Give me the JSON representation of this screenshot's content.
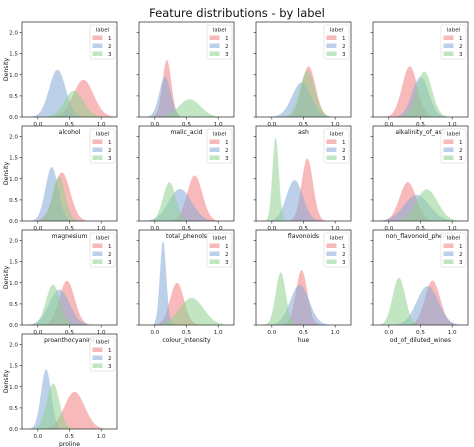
{
  "figure_title": "Feature distributions - by label",
  "colors": {
    "1": "#f08080",
    "2": "#87a9d8",
    "3": "#8fd18f"
  },
  "chart_data": {
    "type": "area",
    "title": "Feature distributions - by label",
    "ylabel": "Density",
    "ylim": [
      0,
      2.25
    ],
    "yticks": [
      "0.0",
      "0.5",
      "1.0",
      "1.5",
      "2.0"
    ],
    "grid": false,
    "legend": {
      "title": "label",
      "entries": [
        "1",
        "2",
        "3"
      ],
      "placement": "top-right"
    },
    "panels": [
      {
        "xlabel": "alcohol",
        "xlim": [
          -0.25,
          1.25
        ],
        "xticks": [
          "0.0",
          "0.5",
          "1.0"
        ],
        "series": [
          {
            "name": "1",
            "mu": 0.72,
            "sd": 0.16,
            "peak": 0.88
          },
          {
            "name": "2",
            "mu": 0.31,
            "sd": 0.13,
            "peak": 1.12
          },
          {
            "name": "3",
            "mu": 0.57,
            "sd": 0.15,
            "peak": 0.62
          }
        ]
      },
      {
        "xlabel": "malic_acid",
        "xlim": [
          -0.25,
          1.25
        ],
        "xticks": [
          "0.0",
          "0.5",
          "1.0"
        ],
        "series": [
          {
            "name": "1",
            "mu": 0.19,
            "sd": 0.07,
            "peak": 1.35
          },
          {
            "name": "2",
            "mu": 0.16,
            "sd": 0.09,
            "peak": 0.95
          },
          {
            "name": "3",
            "mu": 0.55,
            "sd": 0.17,
            "peak": 0.42
          }
        ]
      },
      {
        "xlabel": "ash",
        "xlim": [
          -0.25,
          1.25
        ],
        "xticks": [
          "0.0",
          "0.5",
          "1.0"
        ],
        "series": [
          {
            "name": "1",
            "mu": 0.58,
            "sd": 0.11,
            "peak": 1.2
          },
          {
            "name": "2",
            "mu": 0.47,
            "sd": 0.15,
            "peak": 0.82
          },
          {
            "name": "3",
            "mu": 0.56,
            "sd": 0.12,
            "peak": 1.1
          }
        ]
      },
      {
        "xlabel": "alkalinity_of_ash",
        "xlim": [
          -0.25,
          1.25
        ],
        "xticks": [
          "0.0",
          "0.5",
          "1.0"
        ],
        "series": [
          {
            "name": "1",
            "mu": 0.33,
            "sd": 0.12,
            "peak": 1.2
          },
          {
            "name": "2",
            "mu": 0.5,
            "sd": 0.13,
            "peak": 0.95
          },
          {
            "name": "3",
            "mu": 0.56,
            "sd": 0.12,
            "peak": 1.08
          }
        ]
      },
      {
        "xlabel": "magnesium",
        "xlim": [
          -0.25,
          1.25
        ],
        "xticks": [
          "0.0",
          "0.5",
          "1.0"
        ],
        "series": [
          {
            "name": "1",
            "mu": 0.38,
            "sd": 0.13,
            "peak": 1.15
          },
          {
            "name": "2",
            "mu": 0.22,
            "sd": 0.1,
            "peak": 1.28
          },
          {
            "name": "3",
            "mu": 0.33,
            "sd": 0.1,
            "peak": 1.05
          }
        ]
      },
      {
        "xlabel": "total_phenols",
        "xlim": [
          -0.25,
          1.25
        ],
        "xticks": [
          "0.0",
          "0.5",
          "1.0"
        ],
        "series": [
          {
            "name": "1",
            "mu": 0.63,
            "sd": 0.12,
            "peak": 1.08
          },
          {
            "name": "2",
            "mu": 0.4,
            "sd": 0.18,
            "peak": 0.76
          },
          {
            "name": "3",
            "mu": 0.23,
            "sd": 0.1,
            "peak": 0.92
          }
        ]
      },
      {
        "xlabel": "flavonoids",
        "xlim": [
          -0.25,
          1.25
        ],
        "xticks": [
          "0.0",
          "0.5",
          "1.0"
        ],
        "series": [
          {
            "name": "1",
            "mu": 0.56,
            "sd": 0.09,
            "peak": 1.48
          },
          {
            "name": "2",
            "mu": 0.36,
            "sd": 0.13,
            "peak": 0.97
          },
          {
            "name": "3",
            "mu": 0.06,
            "sd": 0.05,
            "peak": 1.98
          }
        ]
      },
      {
        "xlabel": "non_flavonoid_phenols",
        "xlim": [
          -0.25,
          1.25
        ],
        "xticks": [
          "0.0",
          "0.5",
          "1.0"
        ],
        "series": [
          {
            "name": "1",
            "mu": 0.3,
            "sd": 0.13,
            "peak": 0.92
          },
          {
            "name": "2",
            "mu": 0.44,
            "sd": 0.2,
            "peak": 0.62
          },
          {
            "name": "3",
            "mu": 0.6,
            "sd": 0.17,
            "peak": 0.75
          }
        ]
      },
      {
        "xlabel": "proanthocyanins",
        "xlim": [
          -0.25,
          1.25
        ],
        "xticks": [
          "0.0",
          "0.5",
          "1.0"
        ],
        "series": [
          {
            "name": "1",
            "mu": 0.46,
            "sd": 0.12,
            "peak": 1.05
          },
          {
            "name": "2",
            "mu": 0.34,
            "sd": 0.16,
            "peak": 0.84
          },
          {
            "name": "3",
            "mu": 0.24,
            "sd": 0.11,
            "peak": 0.96
          }
        ]
      },
      {
        "xlabel": "colour_intensity",
        "xlim": [
          -0.25,
          1.25
        ],
        "xticks": [
          "0.0",
          "0.5",
          "1.0"
        ],
        "series": [
          {
            "name": "1",
            "mu": 0.35,
            "sd": 0.11,
            "peak": 1.0
          },
          {
            "name": "2",
            "mu": 0.13,
            "sd": 0.05,
            "peak": 2.0
          },
          {
            "name": "3",
            "mu": 0.58,
            "sd": 0.19,
            "peak": 0.64
          }
        ]
      },
      {
        "xlabel": "hue",
        "xlim": [
          -0.25,
          1.25
        ],
        "xticks": [
          "0.0",
          "0.5",
          "1.0"
        ],
        "series": [
          {
            "name": "1",
            "mu": 0.47,
            "sd": 0.09,
            "peak": 1.3
          },
          {
            "name": "2",
            "mu": 0.44,
            "sd": 0.15,
            "peak": 0.95
          },
          {
            "name": "3",
            "mu": 0.14,
            "sd": 0.08,
            "peak": 1.25
          }
        ]
      },
      {
        "xlabel": "od_of_diluted_wines",
        "xlim": [
          -0.25,
          1.25
        ],
        "xticks": [
          "0.0",
          "0.5",
          "1.0"
        ],
        "series": [
          {
            "name": "1",
            "mu": 0.69,
            "sd": 0.12,
            "peak": 1.05
          },
          {
            "name": "2",
            "mu": 0.61,
            "sd": 0.17,
            "peak": 0.92
          },
          {
            "name": "3",
            "mu": 0.16,
            "sd": 0.1,
            "peak": 1.12
          }
        ]
      },
      {
        "xlabel": "proline",
        "xlim": [
          -0.25,
          1.25
        ],
        "xticks": [
          "0.0",
          "0.5",
          "1.0"
        ],
        "series": [
          {
            "name": "1",
            "mu": 0.58,
            "sd": 0.16,
            "peak": 0.88
          },
          {
            "name": "2",
            "mu": 0.13,
            "sd": 0.08,
            "peak": 1.42
          },
          {
            "name": "3",
            "mu": 0.24,
            "sd": 0.1,
            "peak": 1.08
          }
        ]
      }
    ]
  }
}
